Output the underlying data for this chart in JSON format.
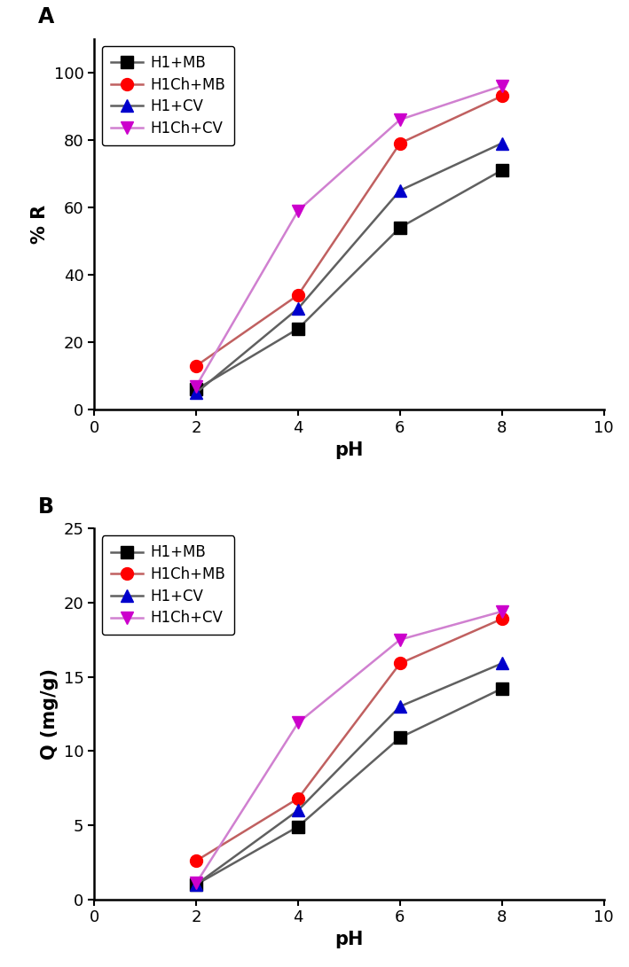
{
  "pH": [
    2,
    4,
    6,
    8
  ],
  "panel_A": {
    "title": "A",
    "ylabel": "% R",
    "xlabel": "pH",
    "xlim": [
      0,
      10
    ],
    "ylim": [
      0,
      110
    ],
    "yticks": [
      0,
      20,
      40,
      60,
      80,
      100
    ],
    "xticks": [
      0,
      2,
      4,
      6,
      8,
      10
    ],
    "series": [
      {
        "label": "H1+MB",
        "marker_color": "#000000",
        "line_color": "#606060",
        "marker": "s",
        "values": [
          6,
          24,
          54,
          71
        ]
      },
      {
        "label": "H1Ch+MB",
        "marker_color": "#ff0000",
        "line_color": "#c06060",
        "marker": "o",
        "values": [
          13,
          34,
          79,
          93
        ]
      },
      {
        "label": "H1+CV",
        "marker_color": "#0000cc",
        "line_color": "#606060",
        "marker": "^",
        "values": [
          5,
          30,
          65,
          79
        ]
      },
      {
        "label": "H1Ch+CV",
        "marker_color": "#cc00cc",
        "line_color": "#d080d0",
        "marker": "v",
        "values": [
          7,
          59,
          86,
          96
        ]
      }
    ]
  },
  "panel_B": {
    "title": "B",
    "ylabel": "Q (mg/g)",
    "xlabel": "pH",
    "xlim": [
      0,
      10
    ],
    "ylim": [
      0,
      25
    ],
    "yticks": [
      0,
      5,
      10,
      15,
      20,
      25
    ],
    "xticks": [
      0,
      2,
      4,
      6,
      8,
      10
    ],
    "series": [
      {
        "label": "H1+MB",
        "marker_color": "#000000",
        "line_color": "#606060",
        "marker": "s",
        "values": [
          1.0,
          4.9,
          10.9,
          14.2
        ]
      },
      {
        "label": "H1Ch+MB",
        "marker_color": "#ff0000",
        "line_color": "#c06060",
        "marker": "o",
        "values": [
          2.6,
          6.8,
          15.9,
          18.9
        ]
      },
      {
        "label": "H1+CV",
        "marker_color": "#0000cc",
        "line_color": "#606060",
        "marker": "^",
        "values": [
          1.0,
          6.0,
          13.0,
          15.9
        ]
      },
      {
        "label": "H1Ch+CV",
        "marker_color": "#cc00cc",
        "line_color": "#d080d0",
        "marker": "v",
        "values": [
          1.1,
          11.9,
          17.5,
          19.4
        ]
      }
    ]
  },
  "markersize": 10,
  "linewidth": 1.8,
  "legend_fontsize": 12,
  "axis_label_fontsize": 15,
  "tick_fontsize": 13,
  "panel_label_fontsize": 17
}
